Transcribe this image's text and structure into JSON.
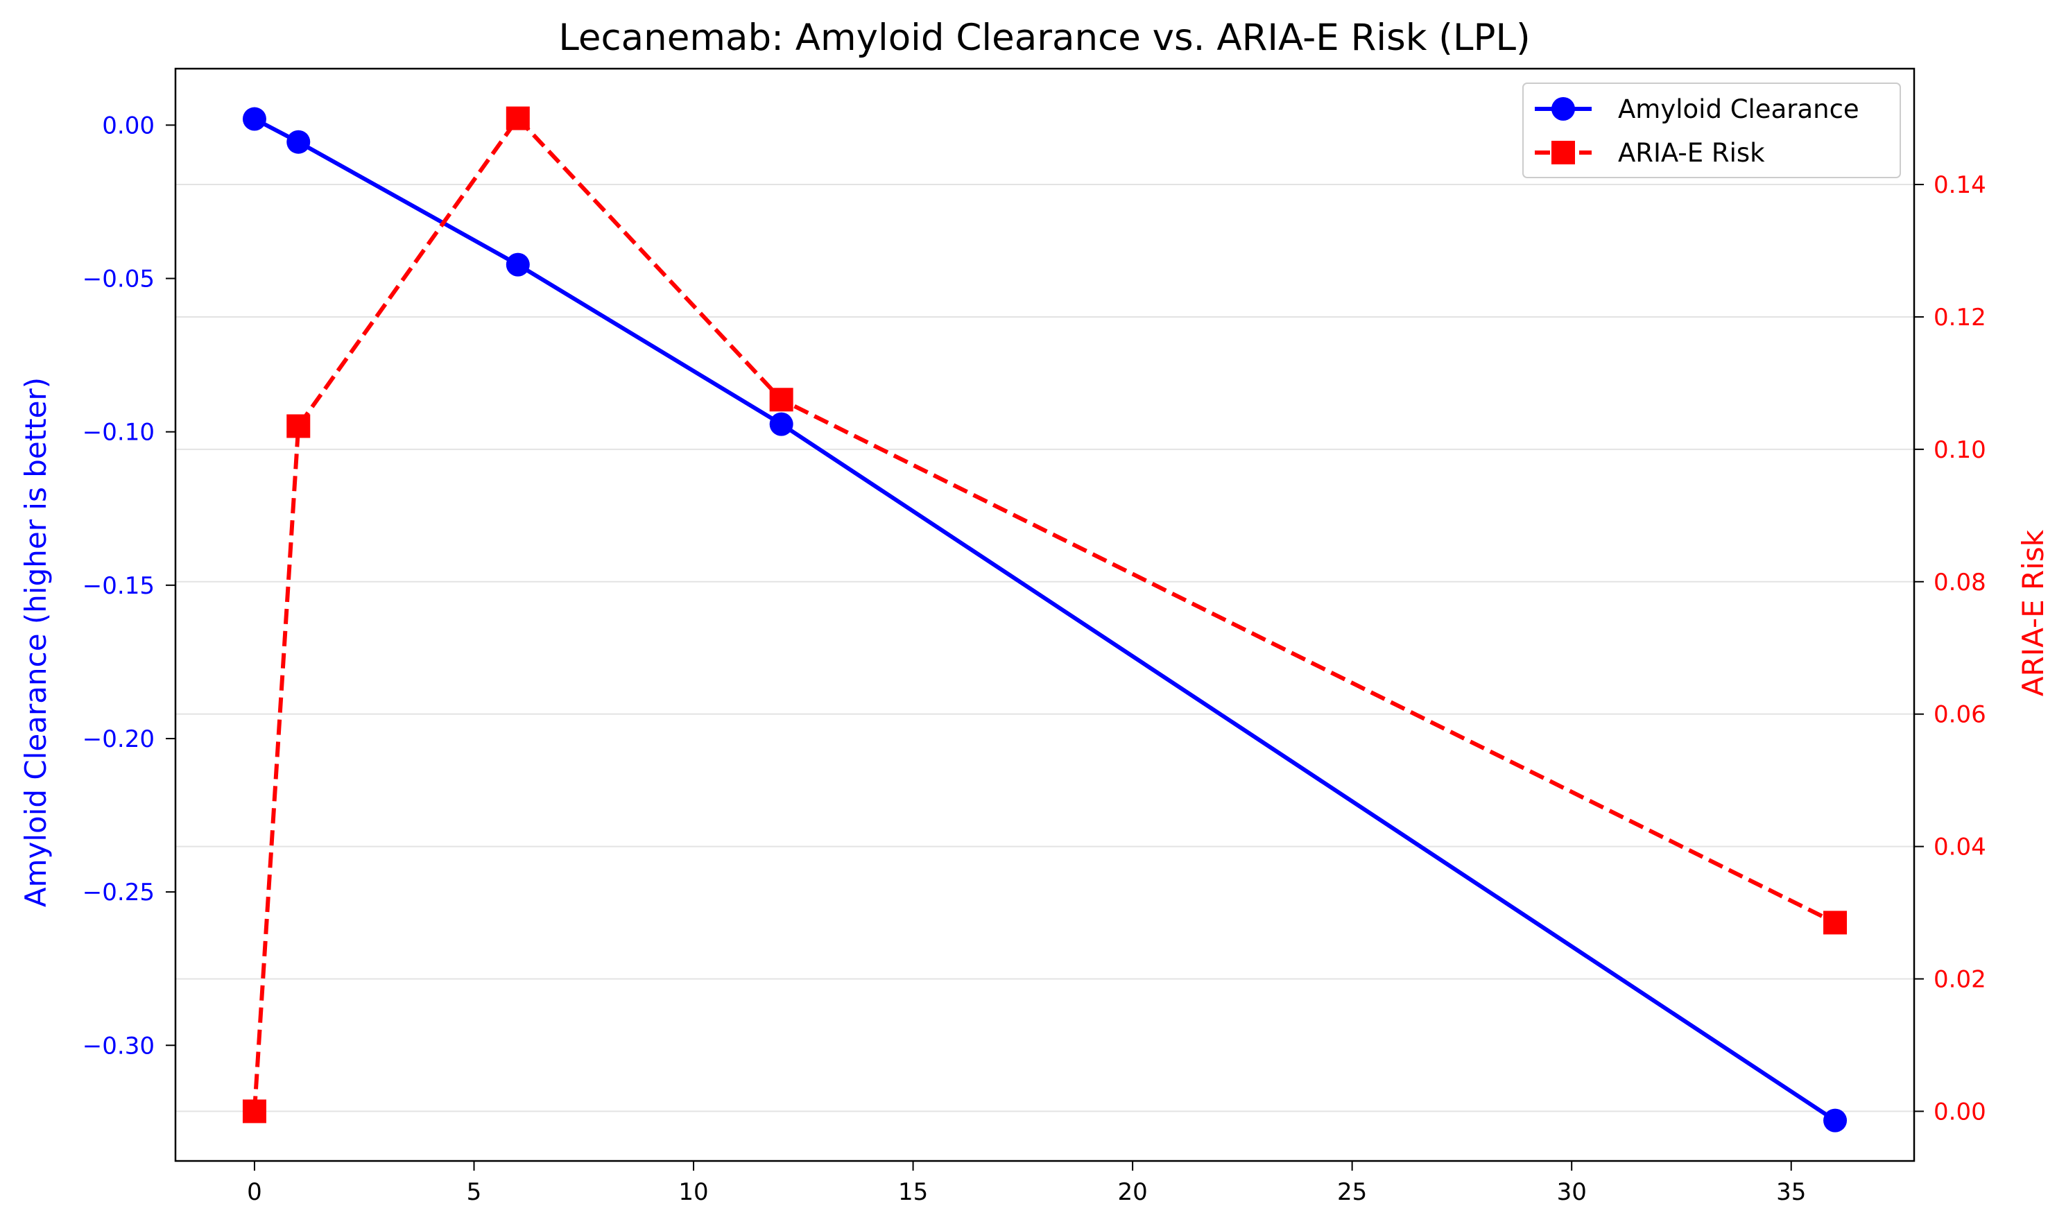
{
  "chart_data": {
    "type": "line",
    "title": "Lecanemab: Amyloid Clearance vs. ARIA-E Risk (LPL)",
    "xlabel": "",
    "ylabel_left": "Amyloid Clearance (higher is better)",
    "ylabel_right": "ARIA-E Risk",
    "xlim": [
      -1.8,
      37.8
    ],
    "ylim_left": [
      -0.3377,
      0.0184
    ],
    "ylim_right": [
      -0.0075,
      0.1575
    ],
    "x_ticks": [
      "0",
      "5",
      "10",
      "15",
      "20",
      "25",
      "30",
      "35"
    ],
    "y_left_ticks": [
      "0.00",
      "−0.05",
      "−0.10",
      "−0.15",
      "−0.20",
      "−0.25",
      "−0.30"
    ],
    "y_right_ticks": [
      "0.00",
      "0.02",
      "0.04",
      "0.06",
      "0.08",
      "0.10",
      "0.12",
      "0.14"
    ],
    "grid": "horizontal, right axis",
    "legend_position": "upper right",
    "series": [
      {
        "name": "Amyloid Clearance",
        "axis": "left",
        "color": "#0000ff",
        "marker": "circle",
        "line_style": "solid",
        "x": [
          0,
          1,
          6,
          12,
          36
        ],
        "y": [
          0.002,
          -0.0055,
          -0.0455,
          -0.0975,
          -0.3245
        ]
      },
      {
        "name": "ARIA-E Risk",
        "axis": "right",
        "color": "#ff0000",
        "marker": "square",
        "line_style": "dashed",
        "x": [
          0,
          1,
          6,
          12,
          36
        ],
        "y": [
          0.0,
          0.1035,
          0.15,
          0.1075,
          0.0285
        ]
      }
    ]
  }
}
